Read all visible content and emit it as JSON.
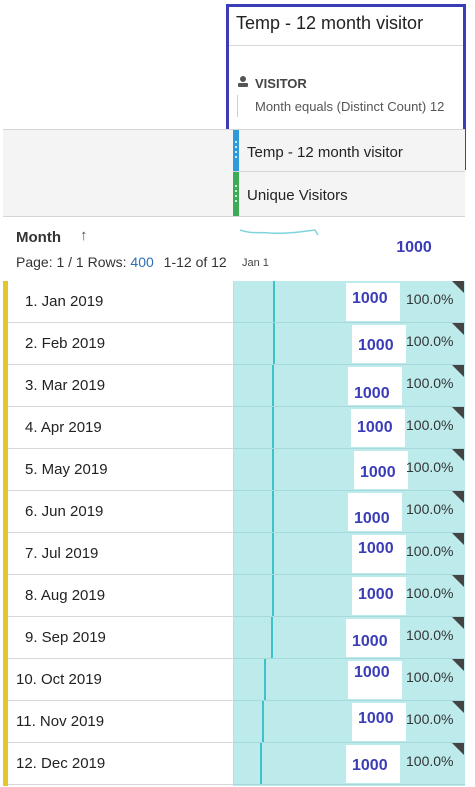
{
  "segment_popup": {
    "title": "Temp - 12 month visitor",
    "visitor_label": "VISITOR",
    "rule": "Month equals (Distinct Count) 12"
  },
  "header": {
    "segment_name": "Temp - 12 month visitor",
    "metric_name": "Unique Visitors",
    "dimension": "Month",
    "page_label": "Page: 1 / 1  Rows:",
    "rows_value": "400",
    "range_text": "1-12 of 12",
    "spark_label": "Jan 1",
    "total": "1000"
  },
  "colors": {
    "accent": "#3b3db8",
    "segment_handle": "#2d9ad9",
    "metric_handle": "#3dab56",
    "row_bar": "#e5c62b",
    "cell_bg": "#bdebec"
  },
  "rows": [
    {
      "label": "1. Jan 2019",
      "value": "1000",
      "pct": "100.0%"
    },
    {
      "label": "2. Feb 2019",
      "value": "1000",
      "pct": "100.0%"
    },
    {
      "label": "3. Mar 2019",
      "value": "1000",
      "pct": "100.0%"
    },
    {
      "label": "4. Apr 2019",
      "value": "1000",
      "pct": "100.0%"
    },
    {
      "label": "5. May 2019",
      "value": "1000",
      "pct": "100.0%"
    },
    {
      "label": "6. Jun 2019",
      "value": "1000",
      "pct": "100.0%"
    },
    {
      "label": "7. Jul 2019",
      "value": "1000",
      "pct": "100.0%"
    },
    {
      "label": "8. Aug 2019",
      "value": "1000",
      "pct": "100.0%"
    },
    {
      "label": "9. Sep 2019",
      "value": "1000",
      "pct": "100.0%"
    },
    {
      "label": "10. Oct 2019",
      "value": "1000",
      "pct": "100.0%"
    },
    {
      "label": "11. Nov 2019",
      "value": "1000",
      "pct": "100.0%"
    },
    {
      "label": "12. Dec 2019",
      "value": "1000",
      "pct": "100.0%"
    }
  ]
}
